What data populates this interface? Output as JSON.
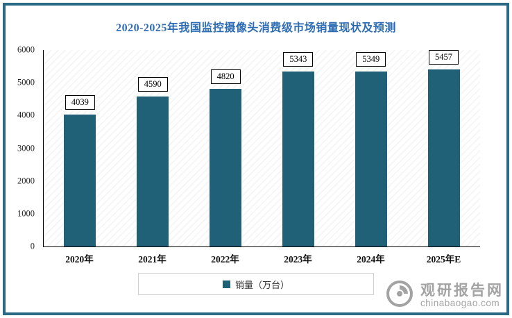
{
  "chart_data": {
    "type": "bar",
    "title": "2020-2025年我国监控摄像头消费级市场销量现状及预测",
    "categories": [
      "2020年",
      "2021年",
      "2022年",
      "2023年",
      "2024年",
      "2025年E"
    ],
    "values": [
      4039,
      4590,
      4820,
      5343,
      5349,
      5457
    ],
    "xlabel": "",
    "ylabel": "",
    "ylim": [
      0,
      6000
    ],
    "ytick_step": 1000,
    "grid": "off",
    "legend": "销量（万台）",
    "legend_position": "bottom",
    "value_labels": "boxed above bars"
  },
  "colors": {
    "bar": "#206177",
    "title": "#2e6db4",
    "frame": "#2a6a84",
    "watermark": "#a3a3a3"
  },
  "watermark": {
    "brand": "观研报告网",
    "domain": "chinabaogao.com",
    "logo": "circular-ring-logo-icon"
  }
}
